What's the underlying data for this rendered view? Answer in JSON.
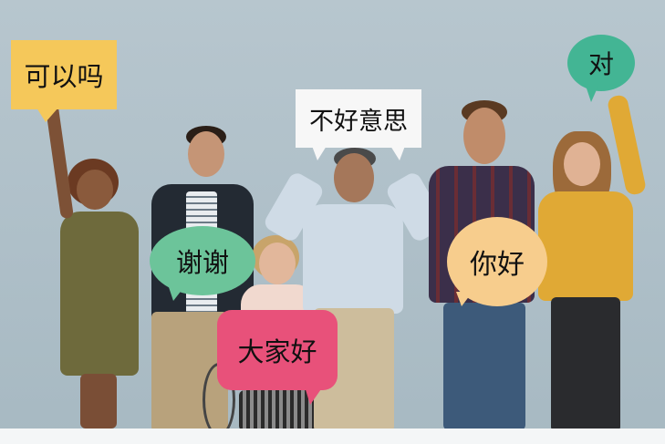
{
  "bubbles": {
    "can_i": "可以吗",
    "sorry": "不好意思",
    "right": "对",
    "thanks": "谢谢",
    "hello": "你好",
    "hello_everyone": "大家好"
  },
  "colors": {
    "wall": "#aebfc8",
    "yellow_bubble": "#f5c85a",
    "white_bubble": "#f7f7f7",
    "teal_bubble": "#43b594",
    "green_bubble": "#6cc49a",
    "peach_bubble": "#f7cd8d",
    "pink_bubble": "#e8517a"
  }
}
